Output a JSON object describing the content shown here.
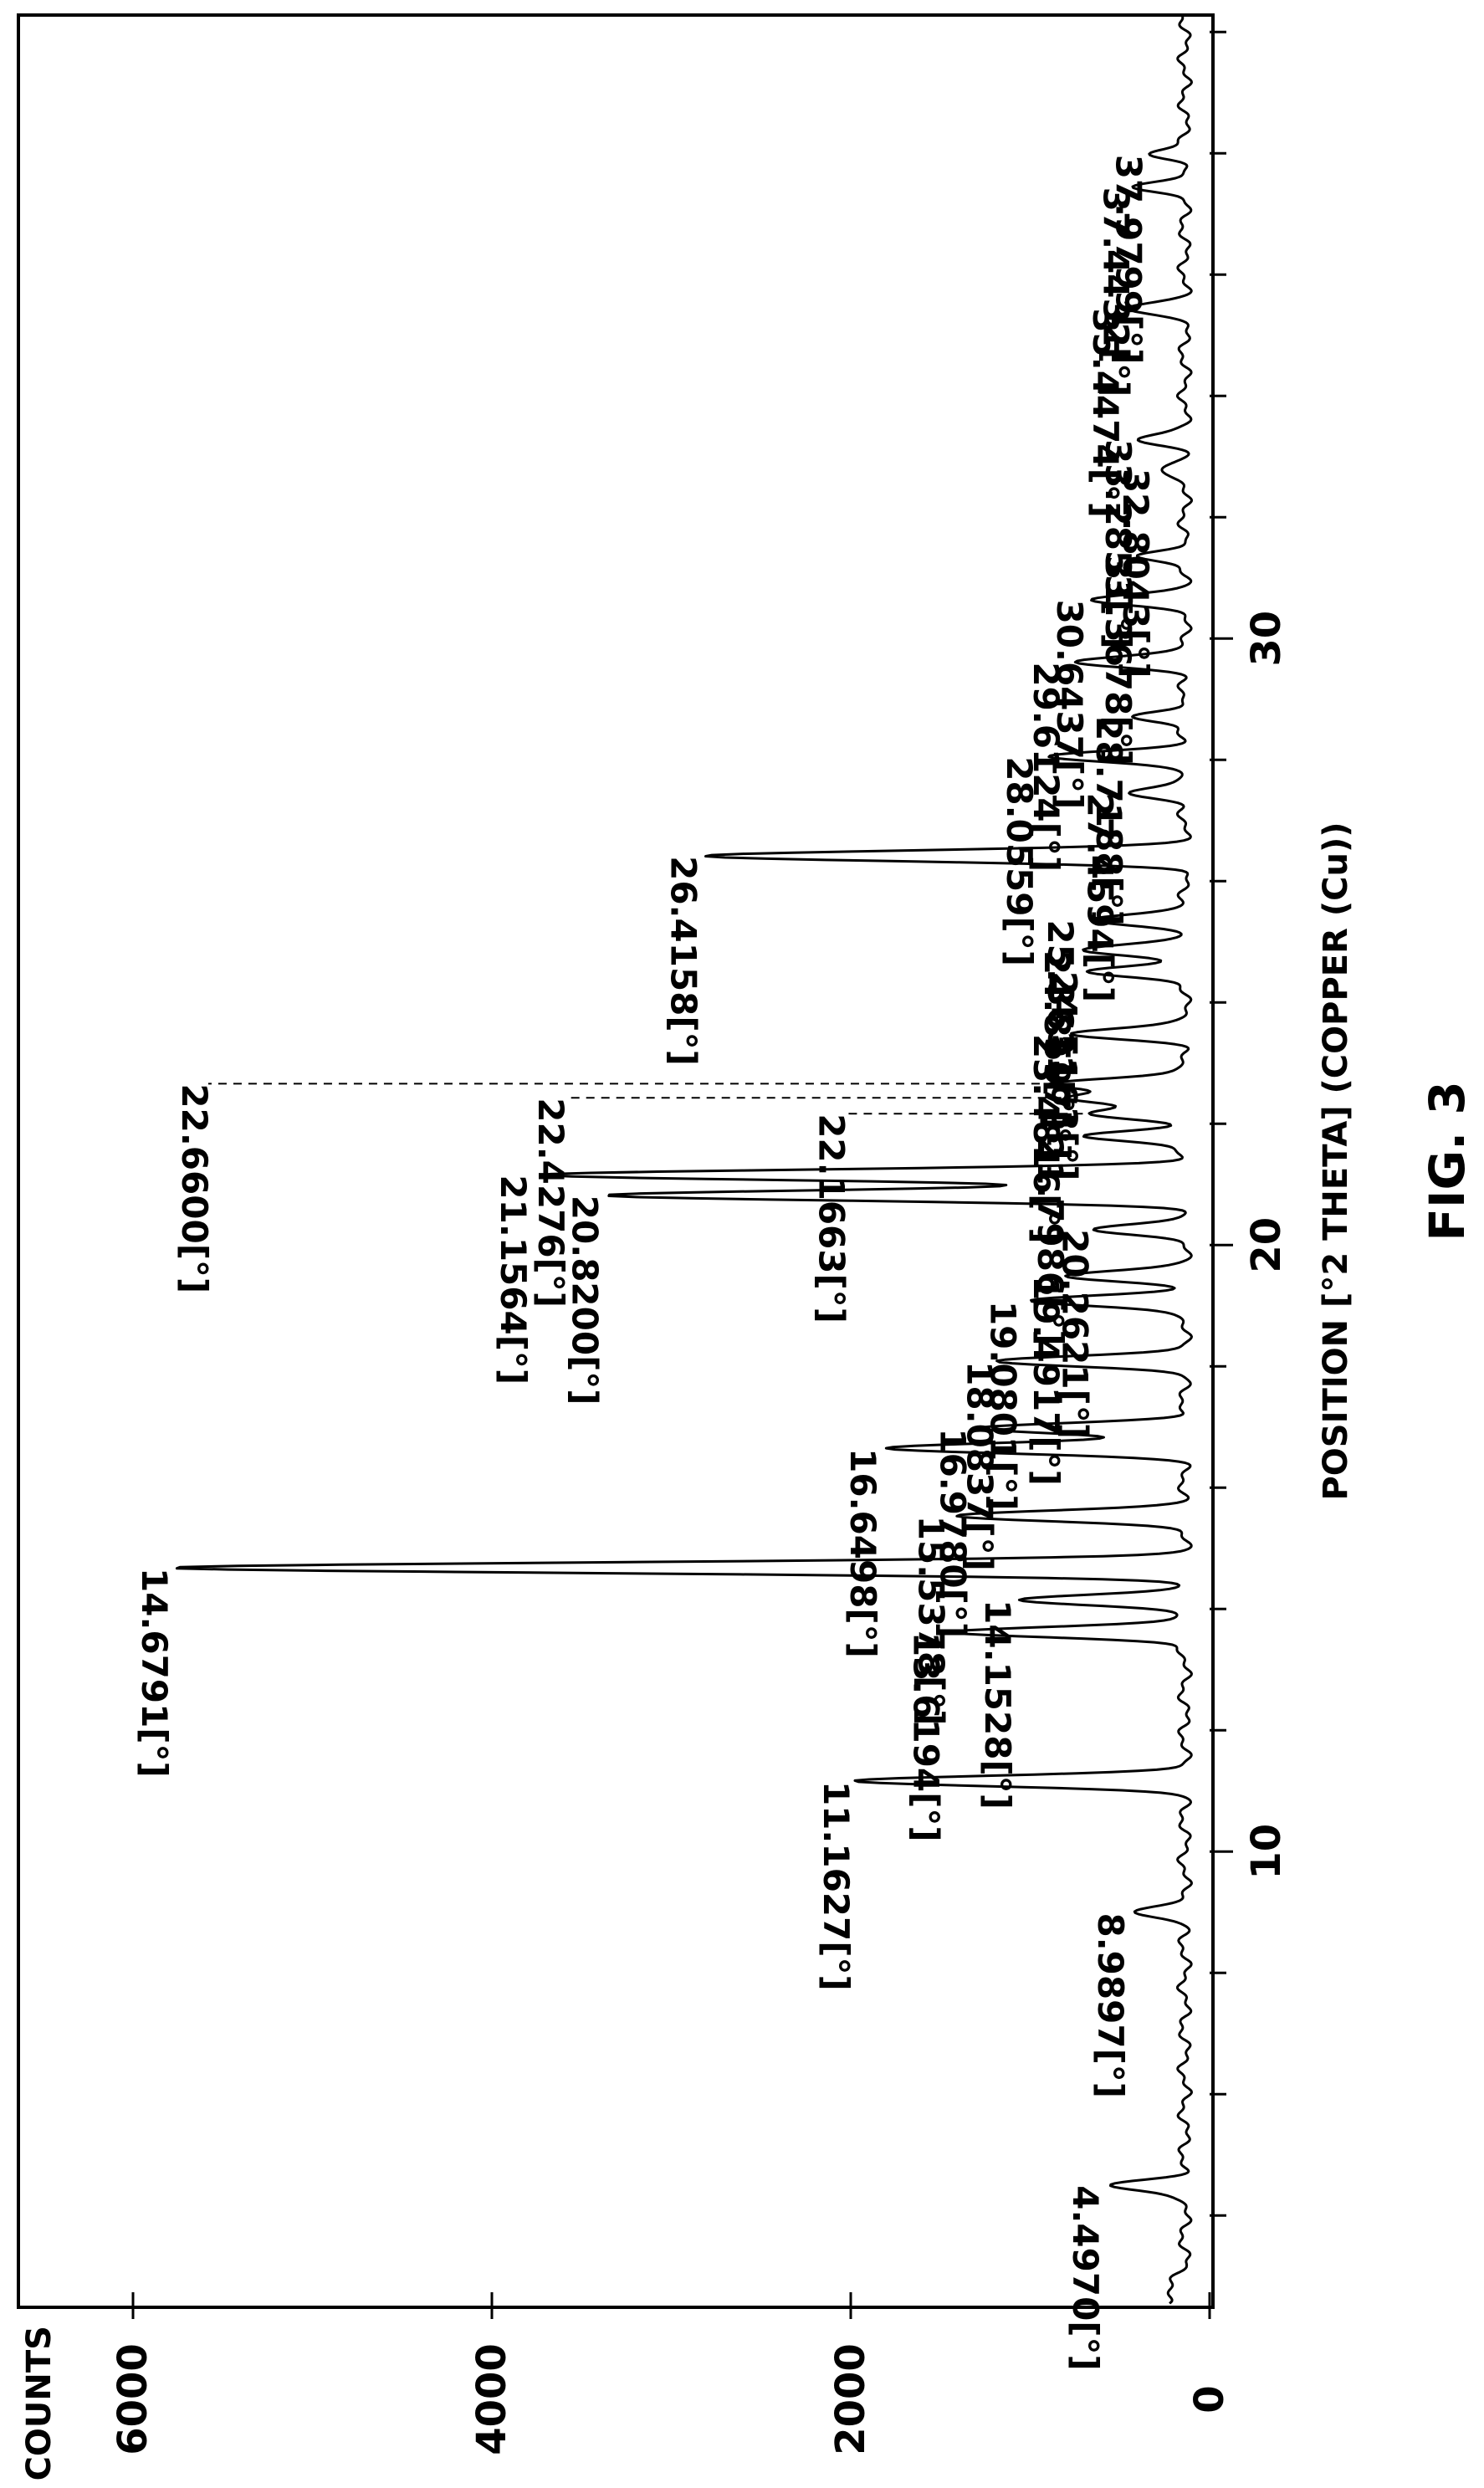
{
  "chart_data": {
    "type": "line",
    "orientation": "rotated-90",
    "title": "",
    "xlabel": "POSITION [°2 THETA] (COPPER (Cu))",
    "ylabel": "COUNTS",
    "figure_label": "FIG. 3",
    "xlim": [
      2.5,
      40.3
    ],
    "ylim": [
      0,
      6700
    ],
    "x_ticks": [
      10,
      20,
      30
    ],
    "x_tick_labels": [
      "10",
      "20",
      "30"
    ],
    "x_minor_ticks": [
      4,
      6,
      8,
      12,
      14,
      16,
      18,
      22,
      24,
      26,
      28,
      32,
      34,
      36,
      38,
      40
    ],
    "y_ticks": [
      0,
      2000,
      4000,
      6000
    ],
    "y_tick_labels": [
      "0",
      "2000",
      "4000",
      "6000"
    ],
    "grid": false,
    "baseline": 140,
    "series": [
      {
        "peaks": [
          {
            "x": 4.497,
            "y": 560,
            "label": "4.4970[°]"
          },
          {
            "x": 8.9897,
            "y": 420,
            "label": "8.9897[°]"
          },
          {
            "x": 11.1627,
            "y": 1950,
            "label": "11.1627[°]"
          },
          {
            "x": 13.6194,
            "y": 1450,
            "label": "13.6194[°]"
          },
          {
            "x": 14.1528,
            "y": 1050,
            "label": "14.1528[°]"
          },
          {
            "x": 14.6791,
            "y": 5750,
            "label": "14.6791[°]"
          },
          {
            "x": 15.5378,
            "y": 1420,
            "label": "15.5378[°]"
          },
          {
            "x": 16.6498,
            "y": 1800,
            "label": "16.6498[°]"
          },
          {
            "x": 16.978,
            "y": 1300,
            "label": "16.9780[°]"
          },
          {
            "x": 18.0837,
            "y": 1150,
            "label": "18.0837[°]"
          },
          {
            "x": 19.0801,
            "y": 1020,
            "label": "19.0801[°]"
          },
          {
            "x": 19.4917,
            "y": 780,
            "label": "19.4917[°]"
          },
          {
            "x": 20.2621,
            "y": 620,
            "label": "20.2621[°]"
          },
          {
            "x": 20.82,
            "y": 3350,
            "label": "20.8200[°]"
          },
          {
            "x": 21.1564,
            "y": 3750,
            "label": "21.1564[°]"
          },
          {
            "x": 21.7986,
            "y": 700,
            "label": "21.7986[°]"
          },
          {
            "x": 22.1663,
            "y": 660,
            "label": "22.1663[°]"
          },
          {
            "x": 22.4276,
            "y": 780,
            "label": "22.4276[°]"
          },
          {
            "x": 22.66,
            "y": 900,
            "label": "22.6600[°]"
          },
          {
            "x": 23.4816,
            "y": 780,
            "label": "23.4816[°]"
          },
          {
            "x": 24.5163,
            "y": 680,
            "label": "24.5163[°]"
          },
          {
            "x": 24.8597,
            "y": 720,
            "label": "24.8597[°]"
          },
          {
            "x": 25.3631,
            "y": 700,
            "label": "25.3631[°]"
          },
          {
            "x": 26.4158,
            "y": 2800,
            "label": "26.4158[°]"
          },
          {
            "x": 27.4594,
            "y": 480,
            "label": "27.4594[°]"
          },
          {
            "x": 28.0559,
            "y": 930,
            "label": "28.0559[°]"
          },
          {
            "x": 28.7188,
            "y": 430,
            "label": "28.7188[°]"
          },
          {
            "x": 29.6124,
            "y": 780,
            "label": "29.6124[°]"
          },
          {
            "x": 30.6437,
            "y": 650,
            "label": "30.6437[°]"
          },
          {
            "x": 31.3678,
            "y": 380,
            "label": "31.3678[°]"
          },
          {
            "x": 32.8043,
            "y": 280,
            "label": "32.8043[°]"
          },
          {
            "x": 33.2853,
            "y": 380,
            "label": "33.2853[°]"
          },
          {
            "x": 35.4474,
            "y": 450,
            "label": "35.4474[°]"
          },
          {
            "x": 37.4432,
            "y": 390,
            "label": "37.4432[°]"
          },
          {
            "x": 37.9799,
            "y": 320,
            "label": "37.9799[°]"
          }
        ]
      }
    ]
  }
}
